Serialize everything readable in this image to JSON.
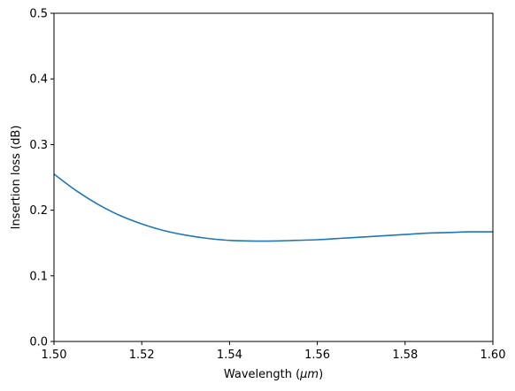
{
  "chart_data": {
    "type": "line",
    "title": "",
    "xlabel_prefix": "Wavelength (",
    "xlabel_unit": "μm",
    "xlabel_suffix": ")",
    "ylabel": "Insertion loss (dB)",
    "xlim": [
      1.5,
      1.6
    ],
    "ylim": [
      0.0,
      0.5
    ],
    "xticks": [
      "1.50",
      "1.52",
      "1.54",
      "1.56",
      "1.58",
      "1.60"
    ],
    "yticks": [
      "0.0",
      "0.1",
      "0.2",
      "0.3",
      "0.4",
      "0.5"
    ],
    "grid": false,
    "series": [
      {
        "color": "#1f77b4",
        "x": [
          1.5,
          1.505,
          1.51,
          1.515,
          1.52,
          1.525,
          1.53,
          1.535,
          1.54,
          1.545,
          1.55,
          1.555,
          1.56,
          1.565,
          1.57,
          1.575,
          1.58,
          1.585,
          1.59,
          1.595,
          1.6
        ],
        "y": [
          0.255,
          0.23,
          0.209,
          0.192,
          0.179,
          0.169,
          0.162,
          0.157,
          0.154,
          0.153,
          0.153,
          0.154,
          0.155,
          0.157,
          0.159,
          0.161,
          0.163,
          0.165,
          0.166,
          0.167,
          0.167
        ]
      }
    ]
  }
}
